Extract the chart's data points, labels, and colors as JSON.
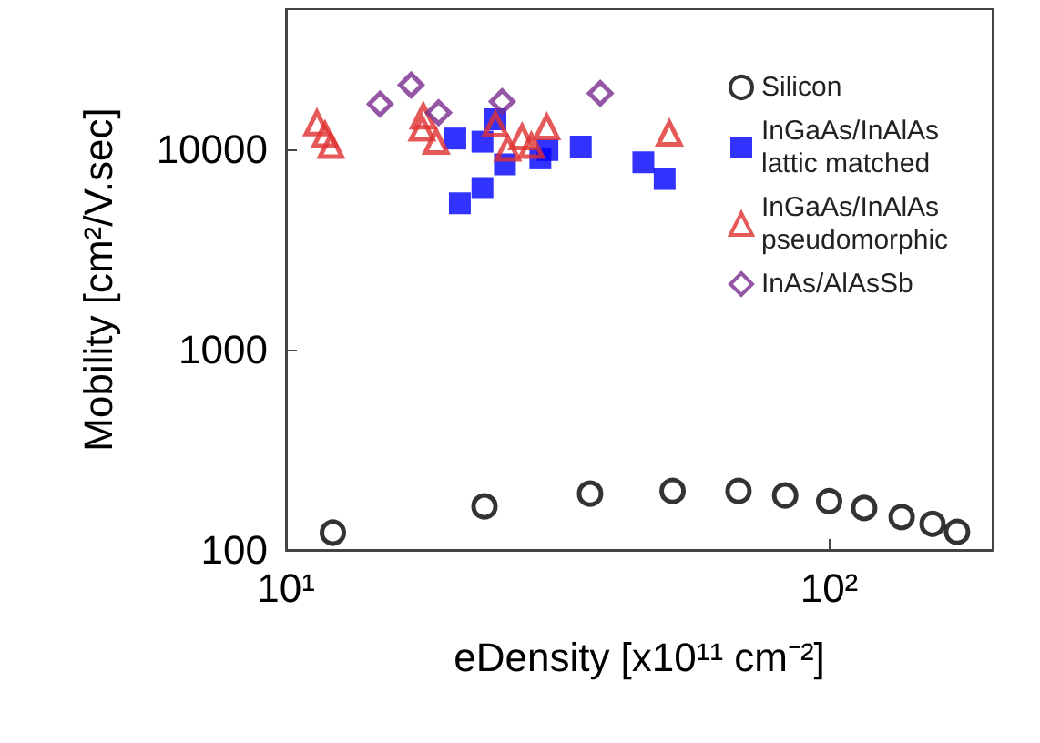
{
  "chart_data": {
    "type": "scatter",
    "xlabel": "eDensity [x10¹¹ cm⁻²]",
    "ylabel": "Mobility [cm²/V.sec]",
    "log": "xy",
    "xlim": [
      10,
      200
    ],
    "ylim": [
      100,
      50000
    ],
    "xticks": [
      {
        "value": 10,
        "label": "10¹"
      },
      {
        "value": 100,
        "label": "10²"
      }
    ],
    "yticks": [
      100,
      1000,
      10000
    ],
    "grid": false,
    "legend": "top right",
    "series": [
      {
        "name": "Silicon",
        "color": "#000000",
        "marker": "circle",
        "x": [
          12.2,
          23.2,
          36.3,
          51.5,
          68.1,
          83,
          100,
          116,
          136,
          155,
          172
        ],
        "values": [
          122,
          165,
          191,
          197,
          197,
          187,
          175,
          162,
          146,
          135,
          123
        ]
      },
      {
        "name": "InGaAs/InAlAs lattic matched",
        "color": "#0000ff",
        "marker": "square",
        "x": [
          20.5,
          23.0,
          24.3,
          25.3,
          29.4,
          30.3,
          34.9,
          20.9,
          23.0,
          45.5,
          49.8
        ],
        "values": [
          11300,
          10900,
          14100,
          8400,
          9000,
          9900,
          10300,
          5370,
          6400,
          8600,
          7100
        ]
      },
      {
        "name": "InGaAs/InAlAs pseudomorphic",
        "color": "#e03030",
        "marker": "triangle",
        "x": [
          11.4,
          11.8,
          12.1,
          17.9,
          17.8,
          18.9,
          24.3,
          25.6,
          27.2,
          28.3,
          30.2,
          50.8
        ],
        "values": [
          13500,
          11800,
          10400,
          14600,
          12700,
          10900,
          13300,
          10100,
          11500,
          10400,
          12900,
          12000
        ]
      },
      {
        "name": "InAs/AlAsSb",
        "color": "#7b2d8e",
        "marker": "diamond",
        "x": [
          14.9,
          17.0,
          19.1,
          25.0,
          37.9
        ],
        "values": [
          16800,
          20900,
          15200,
          17300,
          19000
        ]
      }
    ]
  }
}
